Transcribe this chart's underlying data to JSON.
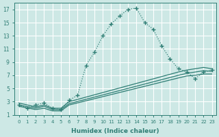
{
  "xlabel": "Humidex (Indice chaleur)",
  "background_color": "#cde8e5",
  "grid_color": "#ffffff",
  "line_color": "#2e7d74",
  "xlim": [
    -0.5,
    23.5
  ],
  "ylim": [
    1,
    18
  ],
  "xticks": [
    0,
    1,
    2,
    3,
    4,
    5,
    6,
    7,
    8,
    9,
    10,
    11,
    12,
    13,
    14,
    15,
    16,
    17,
    18,
    19,
    20,
    21,
    22,
    23
  ],
  "yticks": [
    1,
    3,
    5,
    7,
    9,
    11,
    13,
    15,
    17
  ],
  "dotted_line": {
    "x": [
      0,
      1,
      2,
      3,
      4,
      5,
      6,
      7,
      8,
      9,
      10,
      11,
      12,
      13,
      14,
      15,
      16,
      17,
      18,
      19,
      20,
      21,
      22,
      23
    ],
    "y": [
      2.5,
      2.0,
      2.5,
      2.8,
      2.0,
      1.8,
      3.2,
      4.0,
      8.5,
      10.5,
      13.0,
      14.8,
      16.0,
      17.0,
      17.2,
      15.0,
      14.0,
      11.5,
      9.5,
      8.0,
      7.5,
      6.5,
      7.5,
      7.8
    ]
  },
  "solid_lines": [
    {
      "x": [
        0,
        2,
        3,
        4,
        5,
        6,
        19,
        20,
        21,
        22,
        23
      ],
      "y": [
        2.8,
        2.2,
        2.5,
        2.0,
        2.0,
        3.0,
        7.5,
        7.8,
        8.0,
        8.2,
        8.0
      ]
    },
    {
      "x": [
        0,
        2,
        3,
        4,
        5,
        6,
        19,
        20,
        21,
        22,
        23
      ],
      "y": [
        2.5,
        2.0,
        2.3,
        1.8,
        1.8,
        2.7,
        7.0,
        7.3,
        7.5,
        7.7,
        7.6
      ]
    },
    {
      "x": [
        0,
        2,
        3,
        4,
        5,
        6,
        19,
        20,
        21,
        22,
        23
      ],
      "y": [
        2.3,
        1.8,
        2.0,
        1.6,
        1.6,
        2.5,
        6.6,
        6.9,
        7.0,
        7.2,
        7.2
      ]
    }
  ]
}
